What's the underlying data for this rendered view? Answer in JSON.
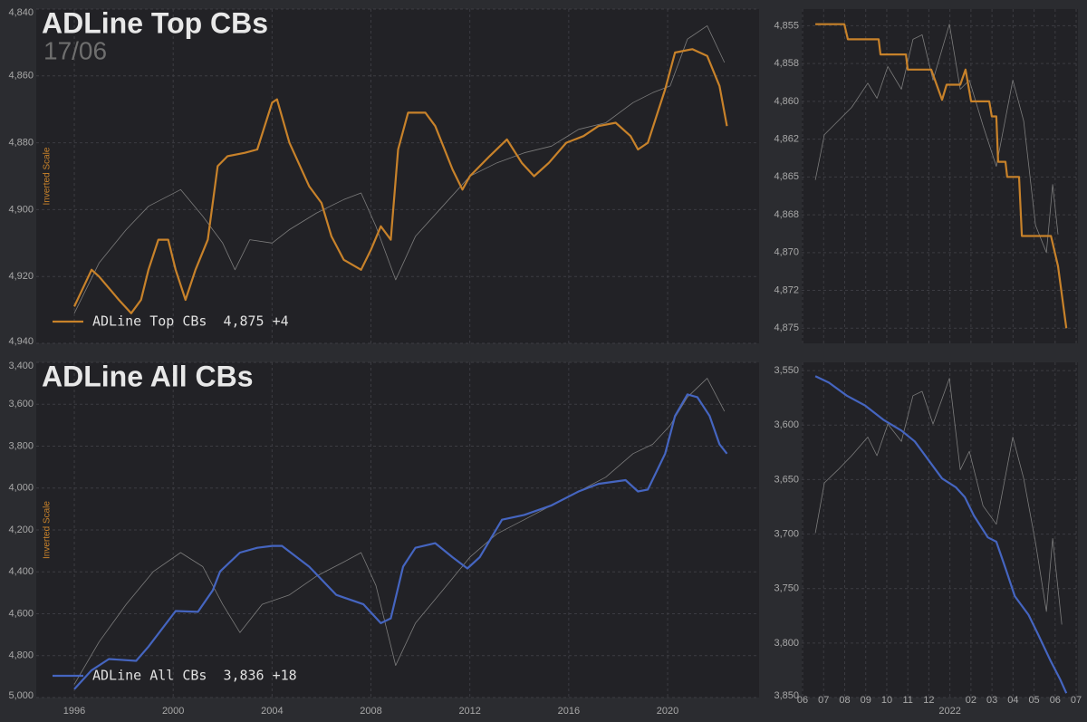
{
  "chart_data": [
    {
      "type": "line",
      "title": "ADLine Top CBs",
      "subtitle": "17/06",
      "ylabel": "Inverted Scale",
      "y_inverted": true,
      "grid": true,
      "legend": "lower left",
      "xlim": [
        1994.46,
        2023.7
      ],
      "ylim": [
        4840,
        4940
      ],
      "yticks": [
        {
          "value": 4840,
          "label": "4,840"
        },
        {
          "value": 4860,
          "label": "4,860"
        },
        {
          "value": 4880,
          "label": "4,880"
        },
        {
          "value": 4900,
          "label": "4,900"
        },
        {
          "value": 4920,
          "label": "4,920"
        },
        {
          "value": 4940,
          "label": "4,940"
        }
      ],
      "series": [
        {
          "color": "#7c7c7c",
          "x": [
            1996.0,
            1997.0,
            1998.1,
            1999.0,
            2000.3,
            2001.2,
            2002.0,
            2002.5,
            2003.1,
            2004.0,
            2004.7,
            2005.8,
            2006.9,
            2007.6,
            2008.2,
            2009.0,
            2009.8,
            2010.9,
            2012.0,
            2013.1,
            2014.2,
            2015.3,
            2016.4,
            2017.5,
            2018.6,
            2019.4,
            2020.1,
            2020.8,
            2021.6,
            2022.3
          ],
          "values": [
            4931,
            4916,
            4906,
            4899,
            4894,
            4902,
            4910,
            4918,
            4909,
            4910,
            4906,
            4901,
            4897,
            4895,
            4905,
            4921,
            4908,
            4899,
            4890,
            4886,
            4883,
            4881,
            4876,
            4874,
            4868,
            4865,
            4863,
            4849,
            4845,
            4856
          ]
        },
        {
          "name": "ADLine Top CBs",
          "legend_value": "4,875 +4",
          "color": "#c8822a",
          "x": [
            1996.0,
            1996.7,
            1997.0,
            1997.8,
            1998.3,
            1998.7,
            1999.0,
            1999.4,
            1999.8,
            2000.1,
            2000.5,
            2000.9,
            2001.4,
            2001.8,
            2002.2,
            2002.9,
            2003.4,
            2004.0,
            2004.2,
            2004.7,
            2005.5,
            2006.0,
            2006.4,
            2006.9,
            2007.6,
            2008.0,
            2008.4,
            2008.8,
            2009.1,
            2009.5,
            2010.2,
            2010.6,
            2011.3,
            2011.7,
            2012.0,
            2012.8,
            2013.5,
            2014.1,
            2014.6,
            2015.2,
            2015.9,
            2016.6,
            2017.2,
            2017.9,
            2018.5,
            2018.8,
            2019.2,
            2019.9,
            2020.3,
            2021.0,
            2021.6,
            2022.1,
            2022.4
          ],
          "values": [
            4929,
            4918,
            4920,
            4927,
            4931,
            4927,
            4918,
            4909,
            4909,
            4918,
            4927,
            4918,
            4909,
            4887,
            4884,
            4883,
            4882,
            4868,
            4867,
            4880,
            4893,
            4898,
            4908,
            4915,
            4918,
            4912,
            4905,
            4909,
            4882,
            4871,
            4871,
            4875,
            4888,
            4894,
            4890,
            4884,
            4879,
            4886,
            4890,
            4886,
            4880,
            4878,
            4875,
            4874,
            4878,
            4882,
            4880,
            4864,
            4853,
            4852,
            4854,
            4863,
            4875
          ]
        }
      ]
    },
    {
      "type": "line",
      "y_inverted": true,
      "grid": true,
      "xlim": [
        2021.413,
        2022.507
      ],
      "ylim": [
        4853.9,
        4876
      ],
      "yticks": [
        {
          "value": 4855,
          "label": "4,855"
        },
        {
          "value": 4857.5,
          "label": "4,858"
        },
        {
          "value": 4860,
          "label": "4,860"
        },
        {
          "value": 4862.5,
          "label": "4,862"
        },
        {
          "value": 4865,
          "label": "4,865"
        },
        {
          "value": 4867.5,
          "label": "4,868"
        },
        {
          "value": 4870,
          "label": "4,870"
        },
        {
          "value": 4872.5,
          "label": "4,872"
        },
        {
          "value": 4875,
          "label": "4,875"
        }
      ],
      "series": [
        {
          "color": "#7c7c7c",
          "x": [
            2021.467,
            2021.503,
            2021.557,
            2021.611,
            2021.675,
            2021.711,
            2021.754,
            2021.808,
            2021.854,
            2021.89,
            2021.933,
            2021.998,
            2022.041,
            2022.077,
            2022.131,
            2022.184,
            2022.249,
            2022.292,
            2022.339,
            2022.382,
            2022.407,
            2022.428
          ],
          "values": [
            4865.2,
            4862.2,
            4861.3,
            4860.4,
            4858.8,
            4859.8,
            4857.7,
            4859.2,
            4855.9,
            4855.6,
            4858.6,
            4854.9,
            4859.2,
            4858.6,
            4861.6,
            4864.3,
            4858.6,
            4861.3,
            4868.2,
            4870.0,
            4865.5,
            4868.8
          ]
        },
        {
          "color": "#c8822a",
          "x": [
            2021.467,
            2021.582,
            2021.596,
            2021.718,
            2021.725,
            2021.826,
            2021.833,
            2021.926,
            2021.969,
            2021.987,
            2022.041,
            2022.062,
            2022.084,
            2022.156,
            2022.166,
            2022.184,
            2022.191,
            2022.22,
            2022.227,
            2022.274,
            2022.285,
            2022.4,
            2022.428,
            2022.461
          ],
          "values": [
            4854.9,
            4854.9,
            4855.9,
            4855.9,
            4856.9,
            4856.9,
            4857.9,
            4857.9,
            4859.9,
            4858.9,
            4858.9,
            4857.9,
            4860.0,
            4860.0,
            4861.0,
            4861.0,
            4864.0,
            4864.0,
            4865.0,
            4865.0,
            4868.9,
            4868.9,
            4870.9,
            4875.0
          ]
        }
      ]
    },
    {
      "type": "line",
      "title": "ADLine All CBs",
      "ylabel": "Inverted Scale",
      "y_inverted": true,
      "grid": true,
      "legend": "lower left",
      "xlim": [
        1994.46,
        2023.7
      ],
      "ylim": [
        3400,
        5000
      ],
      "xticks": [
        1996,
        2000,
        2004,
        2008,
        2012,
        2016,
        2020
      ],
      "yticks": [
        {
          "value": 3400,
          "label": "3,400"
        },
        {
          "value": 3600,
          "label": "3,600"
        },
        {
          "value": 3800,
          "label": "3,800"
        },
        {
          "value": 4000,
          "label": "4,000"
        },
        {
          "value": 4200,
          "label": "4,200"
        },
        {
          "value": 4400,
          "label": "4,400"
        },
        {
          "value": 4600,
          "label": "4,600"
        },
        {
          "value": 4800,
          "label": "4,800"
        },
        {
          "value": 5000,
          "label": "5,000"
        }
      ],
      "series": [
        {
          "color": "#7c7c7c",
          "x": [
            1996.0,
            1997.0,
            1998.1,
            1999.2,
            2000.3,
            2001.2,
            2002.0,
            2002.7,
            2003.6,
            2004.7,
            2005.8,
            2006.9,
            2007.6,
            2008.2,
            2009.0,
            2009.8,
            2010.9,
            2012.0,
            2013.1,
            2014.2,
            2015.3,
            2016.4,
            2017.5,
            2018.6,
            2019.4,
            2020.1,
            2020.8,
            2021.6,
            2022.3
          ],
          "values": [
            4937,
            4735,
            4555,
            4398,
            4308,
            4375,
            4555,
            4690,
            4555,
            4510,
            4420,
            4353,
            4308,
            4465,
            4847,
            4645,
            4488,
            4330,
            4218,
            4151,
            4083,
            4016,
            3948,
            3836,
            3791,
            3701,
            3566,
            3476,
            3634
          ]
        },
        {
          "name": "ADLine All CBs",
          "legend_value": "3,836 +18",
          "color": "#4565c0",
          "x": [
            1996.0,
            1996.7,
            1997.4,
            1998.5,
            1999.0,
            2000.1,
            2001.0,
            2001.6,
            2001.9,
            2002.7,
            2003.4,
            2004.0,
            2004.4,
            2005.5,
            2006.6,
            2007.7,
            2008.4,
            2008.8,
            2009.3,
            2009.8,
            2010.6,
            2011.3,
            2011.9,
            2012.4,
            2013.3,
            2014.2,
            2015.3,
            2016.4,
            2017.2,
            2018.3,
            2018.8,
            2019.2,
            2019.9,
            2020.3,
            2020.8,
            2021.2,
            2021.7,
            2022.1,
            2022.4
          ],
          "values": [
            4960,
            4870,
            4816,
            4825,
            4757,
            4587,
            4591,
            4488,
            4398,
            4308,
            4285,
            4276,
            4276,
            4375,
            4510,
            4555,
            4645,
            4622,
            4375,
            4285,
            4263,
            4330,
            4384,
            4330,
            4151,
            4128,
            4083,
            4016,
            3980,
            3962,
            4016,
            4007,
            3836,
            3656,
            3553,
            3566,
            3656,
            3791,
            3836
          ]
        }
      ]
    },
    {
      "type": "line",
      "y_inverted": true,
      "grid": true,
      "xlim": [
        2021.413,
        2022.507
      ],
      "ylim": [
        3542.4,
        3850
      ],
      "xticks": [
        {
          "value": 2021.4167,
          "label": "06"
        },
        {
          "value": 2021.5,
          "label": "07"
        },
        {
          "value": 2021.5833,
          "label": "08"
        },
        {
          "value": 2021.6667,
          "label": "09"
        },
        {
          "value": 2021.75,
          "label": "10"
        },
        {
          "value": 2021.8333,
          "label": "11"
        },
        {
          "value": 2021.9167,
          "label": "12"
        },
        {
          "value": 2022,
          "label": "2022"
        },
        {
          "value": 2022.0833,
          "label": "02"
        },
        {
          "value": 2022.1667,
          "label": "03"
        },
        {
          "value": 2022.25,
          "label": "04"
        },
        {
          "value": 2022.3333,
          "label": "05"
        },
        {
          "value": 2022.4167,
          "label": "06"
        },
        {
          "value": 2022.5,
          "label": "07"
        }
      ],
      "yticks": [
        {
          "value": 3550,
          "label": "3,550"
        },
        {
          "value": 3600,
          "label": "3,600"
        },
        {
          "value": 3650,
          "label": "3,650"
        },
        {
          "value": 3700,
          "label": "3,700"
        },
        {
          "value": 3750,
          "label": "3,750"
        },
        {
          "value": 3800,
          "label": "3,800"
        },
        {
          "value": 3850,
          "label": "3,850"
        }
      ],
      "series": [
        {
          "color": "#7c7c7c",
          "x": [
            2021.467,
            2021.503,
            2021.557,
            2021.611,
            2021.675,
            2021.711,
            2021.754,
            2021.808,
            2021.854,
            2021.89,
            2021.933,
            2021.998,
            2022.041,
            2022.077,
            2022.131,
            2022.184,
            2022.249,
            2022.292,
            2022.339,
            2022.382,
            2022.407,
            2022.443
          ],
          "values": [
            3699,
            3653,
            3641,
            3628,
            3611,
            3628,
            3599,
            3615,
            3573,
            3569,
            3599,
            3557,
            3641,
            3624,
            3674,
            3691,
            3611,
            3649,
            3708,
            3771,
            3704,
            3783
          ]
        },
        {
          "color": "#4565c0",
          "x": [
            2021.467,
            2021.521,
            2021.592,
            2021.664,
            2021.736,
            2021.808,
            2021.861,
            2021.915,
            2021.969,
            2022.023,
            2022.059,
            2022.095,
            2022.15,
            2022.184,
            2022.221,
            2022.257,
            2022.311,
            2022.347,
            2022.4,
            2022.436,
            2022.461
          ],
          "values": [
            3555,
            3561,
            3573,
            3582,
            3595,
            3605,
            3615,
            3632,
            3649,
            3657,
            3666,
            3683,
            3703,
            3707,
            3732,
            3757,
            3774,
            3791,
            3817,
            3833,
            3846
          ]
        }
      ]
    }
  ]
}
